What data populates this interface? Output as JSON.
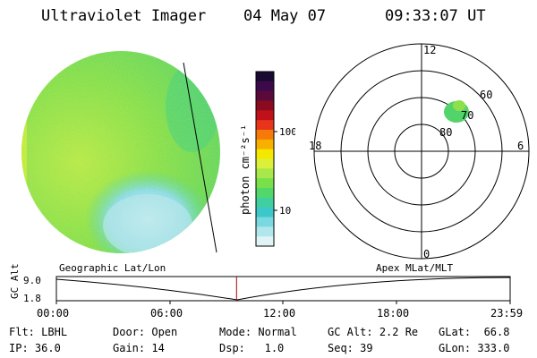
{
  "header": {
    "title": "Ultraviolet Imager",
    "date": "04 May 07",
    "time": "09:33:07 UT"
  },
  "colorbar": {
    "unit_label": "photon cm⁻²s⁻¹",
    "ticks": [
      "100",
      "10"
    ],
    "colors": [
      "#1a0a33",
      "#3c0a4a",
      "#5a0a3a",
      "#8a0a20",
      "#c0101a",
      "#e8341a",
      "#f57a0a",
      "#f7b000",
      "#f4e800",
      "#dcf03a",
      "#a8e84a",
      "#7ae04a",
      "#52d86a",
      "#40d0a0",
      "#3cc8c8",
      "#7ad8e0",
      "#b0e6ec",
      "#e0f4f6"
    ]
  },
  "polar_plot": {
    "labels": {
      "top": "12",
      "bottom": "0",
      "left": "18",
      "right": "6",
      "lat_60": "60",
      "lat_70": "70",
      "lat_80": "80"
    }
  },
  "timeline": {
    "axis_label": "GC Alt",
    "y_ticks": [
      "9.0",
      "1.8"
    ],
    "left_title": "Geographic Lat/Lon",
    "right_title": "Apex MLat/MLT",
    "x_ticks": [
      "00:00",
      "06:00",
      "12:00",
      "18:00",
      "23:59"
    ],
    "current_fraction": 0.397
  },
  "info": {
    "flt": {
      "label": "Flt:",
      "value": "LBHL"
    },
    "ip": {
      "label": "IP:",
      "value": "36.0"
    },
    "door": {
      "label": "Door:",
      "value": "Open"
    },
    "gain": {
      "label": "Gain:",
      "value": "14"
    },
    "mode": {
      "label": "Mode:",
      "value": "Normal"
    },
    "dsp": {
      "label": "Dsp:",
      "value": "1.0"
    },
    "gc_alt": {
      "label": "GC Alt:",
      "value": "2.2 Re"
    },
    "seq": {
      "label": "Seq:",
      "value": "39"
    },
    "glat": {
      "label": "GLat:",
      "value": "66.8"
    },
    "glon": {
      "label": "GLon:",
      "value": "333.0"
    }
  }
}
